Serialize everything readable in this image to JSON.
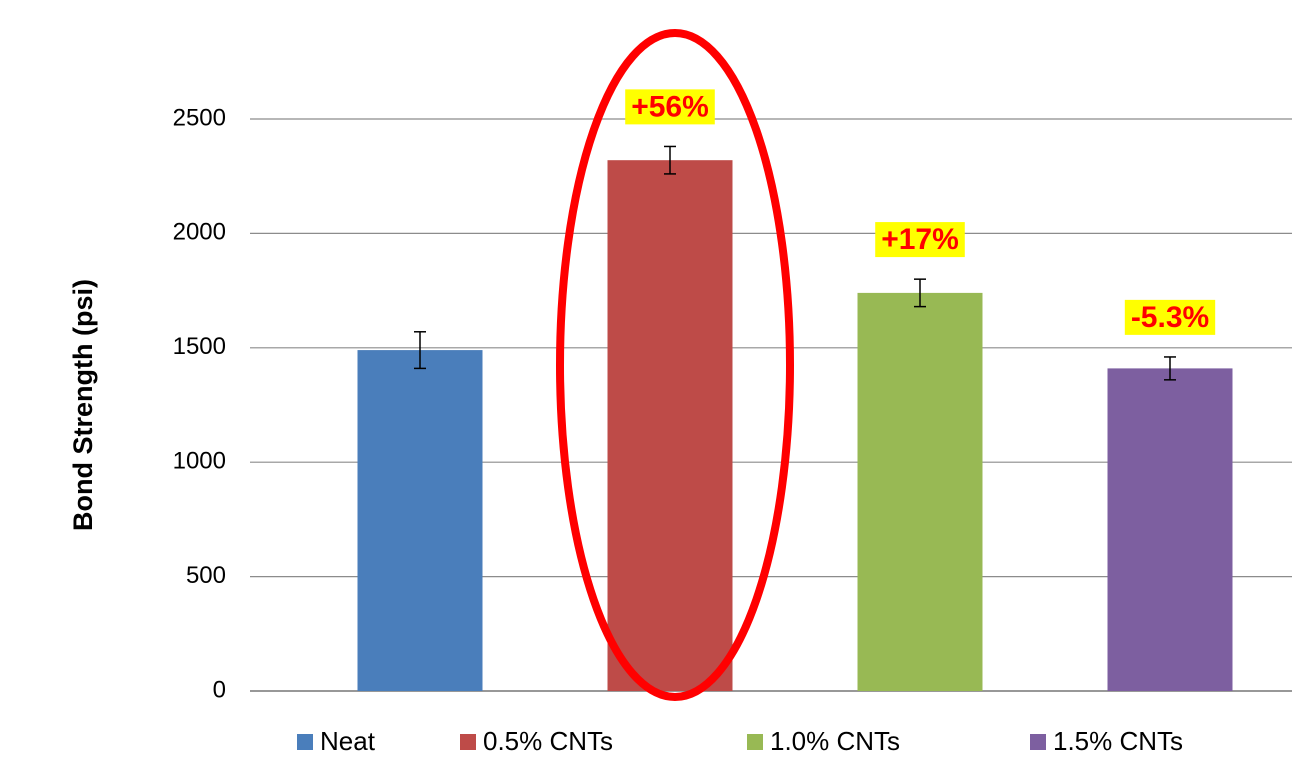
{
  "chart_data": {
    "type": "bar",
    "y_label": "Bond Strength (psi)",
    "categories": [
      null
    ],
    "series": [
      {
        "name": "Neat",
        "color": "#4a7ebb",
        "values": [
          1490
        ],
        "errors": [
          80
        ]
      },
      {
        "name": "0.5% CNTs",
        "color": "#be4b48",
        "values": [
          2320
        ],
        "errors": [
          60
        ]
      },
      {
        "name": "1.0% CNTs",
        "color": "#98b954",
        "values": [
          1740
        ],
        "errors": [
          60
        ]
      },
      {
        "name": "1.5% CNTs",
        "color": "#7d5fa0",
        "values": [
          1410
        ],
        "errors": [
          50
        ]
      }
    ],
    "annotations": [
      "+56%",
      "+17%",
      "-5.3%"
    ],
    "ylim": [
      0,
      2500
    ],
    "yticks": [
      0,
      500,
      1000,
      1500,
      2000,
      2500
    ],
    "grid": true,
    "legend": "bottom"
  }
}
